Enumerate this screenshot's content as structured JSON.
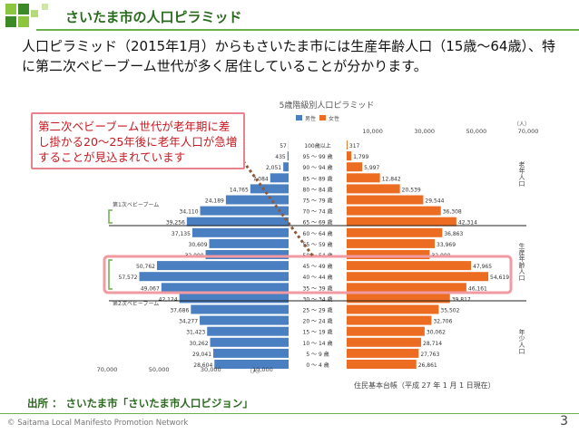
{
  "slide": {
    "title": "さいたま市の人口ピラミッド",
    "lead": "人口ピラミッド（2015年1月）からもさいたま市には生産年齢人口（15歳〜64歳）、特に第二次ベビーブーム世代が多く居住していることが分かります。",
    "callout": "第二次ベビーブーム世代が老年期に差し掛かる20〜25年後に老年人口が急増することが見込まれています",
    "source": "出所 ： さいたま市「さいたま市人口ビジョン」",
    "footer": "© Saitama Local Manifesto Promotion Network",
    "page": "3"
  },
  "colors": {
    "male": "#4a7fc1",
    "female": "#ec6d22",
    "accent": "#6ab04c",
    "highlight": "#f29aa2",
    "callout_border": "#e9838b",
    "callout_text": "#c8181f"
  },
  "chart_data": {
    "type": "bar",
    "title": "5歳階級別人口ピラミッド",
    "legend": [
      "男性",
      "女性"
    ],
    "unit_label": "（人）",
    "note": "住民基本台帳（平成 27 年 1 月 1 日現在）",
    "categories": [
      "100歳以上",
      "95 〜 99 歳",
      "90 〜 94 歳",
      "85 〜 89 歳",
      "80 〜 84 歳",
      "75 〜 79 歳",
      "70 〜 74 歳",
      "65 〜 69 歳",
      "60 〜 64 歳",
      "55 〜 59 歳",
      "50 〜 54 歳",
      "45 〜 49 歳",
      "40 〜 44 歳",
      "35 〜 39 歳",
      "30 〜 34 歳",
      "25 〜 29 歳",
      "20 〜 24 歳",
      "15 〜 19 歳",
      "10 〜 14 歳",
      "5 〜 9 歳",
      "0 〜 4 歳"
    ],
    "series": [
      {
        "name": "男性",
        "values": [
          57,
          435,
          2051,
          7084,
          14765,
          24189,
          34110,
          39256,
          37135,
          30609,
          32000,
          50762,
          57572,
          49067,
          42124,
          37686,
          34277,
          31423,
          30262,
          29041,
          28604
        ]
      },
      {
        "name": "女性",
        "values": [
          317,
          1799,
          5997,
          12842,
          20539,
          29544,
          36308,
          42314,
          36863,
          33969,
          32000,
          47965,
          54619,
          46161,
          39817,
          35502,
          32706,
          30062,
          28714,
          27763,
          26861
        ]
      }
    ],
    "left_axis_ticks": [
      "70,000",
      "50,000",
      "30,000",
      "10,000"
    ],
    "right_axis_ticks": [
      "10,000",
      "30,000",
      "50,000",
      "70,000"
    ],
    "group_labels": [
      "老年人口",
      "生産年齢人口",
      "年少人口"
    ],
    "boom_labels": [
      "第1次ベビーブーム",
      "第2次ベビーブーム"
    ],
    "xlim": [
      0,
      70000
    ]
  }
}
